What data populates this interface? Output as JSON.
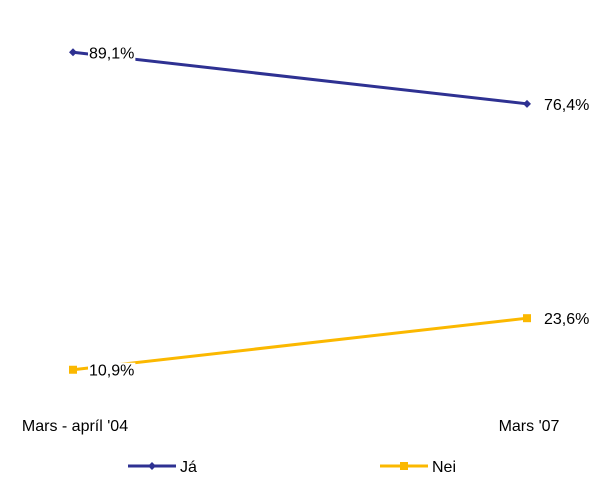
{
  "chart_data": {
    "type": "line",
    "categories": [
      "Mars - apríl '04",
      "Mars '07"
    ],
    "series": [
      {
        "name": "Já",
        "values": [
          89.1,
          76.4
        ],
        "labels": [
          "89,1%",
          "76,4%"
        ],
        "color": "#2E3192",
        "marker": "diamond"
      },
      {
        "name": "Nei",
        "values": [
          10.9,
          23.6
        ],
        "labels": [
          "10,9%",
          "23,6%"
        ],
        "color": "#FBB800",
        "marker": "square"
      }
    ],
    "ylim": [
      0,
      100
    ],
    "grid": false,
    "legend": "bottom"
  }
}
